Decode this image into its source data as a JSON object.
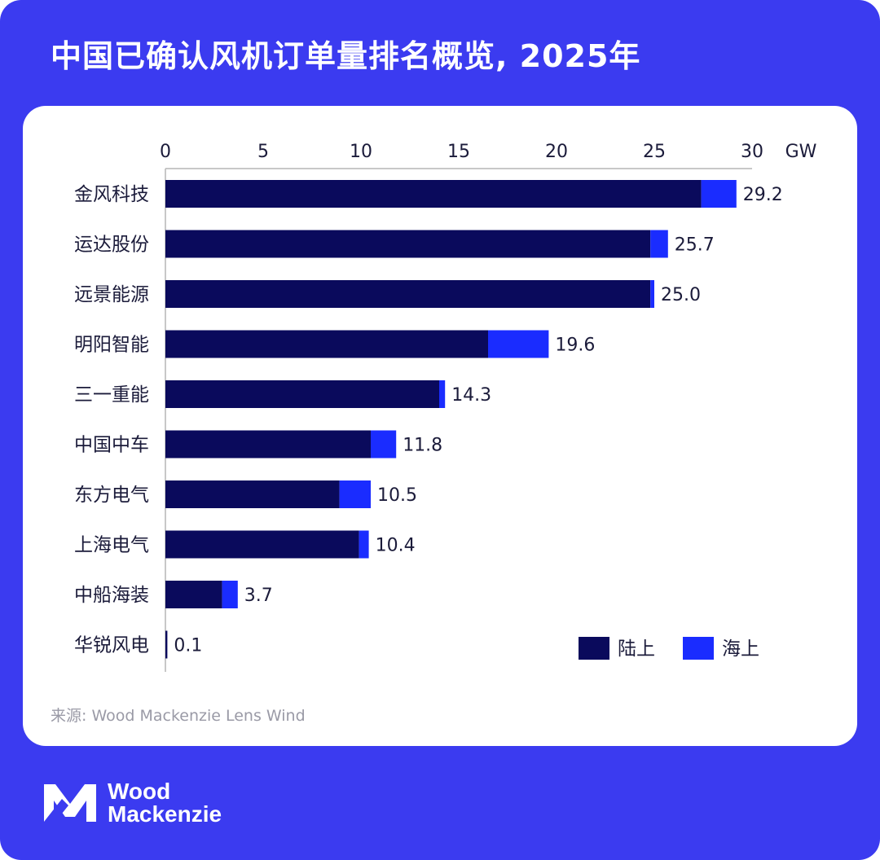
{
  "title": "中国已确认风机订单量排名概览, 2025年",
  "source": "来源: Wood Mackenzie Lens Wind",
  "brand": {
    "line1": "Wood",
    "line2": "Mackenzie"
  },
  "colors": {
    "background": "#3b3bf0",
    "onshore": "#0a0a5c",
    "offshore": "#1a2cff",
    "axis": "#b5b5b5",
    "text": "#1b1b3a"
  },
  "chart_data": {
    "type": "bar",
    "orientation": "horizontal",
    "stacked": true,
    "unit": "GW",
    "xlim": [
      0,
      30
    ],
    "ticks": [
      0,
      5,
      10,
      15,
      20,
      25,
      30
    ],
    "categories": [
      "金风科技",
      "运达股份",
      "远景能源",
      "明阳智能",
      "三一重能",
      "中国中车",
      "东方电气",
      "上海电气",
      "中船海装",
      "华锐风电"
    ],
    "series": [
      {
        "name": "陆上",
        "values": [
          27.4,
          24.8,
          24.8,
          16.5,
          14.0,
          10.5,
          8.9,
          9.9,
          2.9,
          0.1
        ]
      },
      {
        "name": "海上",
        "values": [
          1.8,
          0.9,
          0.2,
          3.1,
          0.3,
          1.3,
          1.6,
          0.5,
          0.8,
          0.0
        ]
      }
    ],
    "totals": [
      "29.2",
      "25.7",
      "25.0",
      "19.6",
      "14.3",
      "11.8",
      "10.5",
      "10.4",
      "3.7",
      "0.1"
    ],
    "legend_position": "bottom-right"
  }
}
